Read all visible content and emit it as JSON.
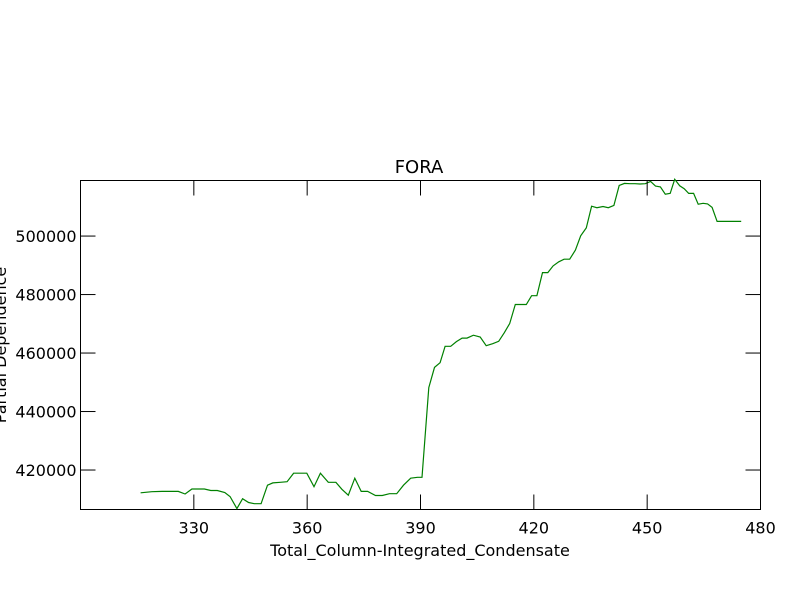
{
  "chart_data": {
    "type": "line",
    "title": "FORA",
    "xlabel": "Total_Column-Integrated_Condensate",
    "ylabel": "Partial Dependence",
    "xlim": [
      300,
      480
    ],
    "ylim": [
      406500,
      519000
    ],
    "xticks": [
      330,
      360,
      390,
      420,
      450,
      480
    ],
    "yticks": [
      420000,
      440000,
      460000,
      480000,
      500000
    ],
    "grid": false,
    "series": [
      {
        "color": "#008000",
        "x": [
          315.9,
          318.9,
          321.6,
          324.1,
          325.9,
          327.7,
          329.5,
          331.6,
          332.8,
          334.5,
          336.2,
          338.2,
          339.6,
          341.4,
          342.9,
          344.5,
          346.0,
          347.8,
          349.5,
          350.9,
          352.9,
          354.7,
          356.4,
          358.2,
          359.9,
          361.8,
          363.5,
          365.6,
          367.6,
          369.2,
          370.9,
          372.6,
          374.3,
          376.0,
          378.1,
          379.9,
          381.8,
          383.7,
          385.5,
          387.4,
          389.2,
          390.4,
          392.2,
          393.7,
          395.2,
          396.5,
          398.0,
          399.5,
          401.0,
          402.3,
          404.0,
          405.8,
          407.4,
          409.1,
          410.7,
          412.2,
          413.6,
          415.1,
          416.5,
          418.0,
          419.4,
          420.8,
          422.3,
          423.7,
          425.1,
          426.6,
          428.0,
          429.5,
          431.0,
          432.4,
          433.9,
          435.3,
          436.7,
          438.3,
          439.7,
          441.2,
          442.6,
          444.0,
          445.4,
          446.8,
          448.1,
          449.5,
          450.9,
          452.2,
          453.5,
          454.8,
          456.1,
          457.3,
          458.6,
          459.8,
          461.0,
          462.3,
          463.5,
          464.8,
          466.0,
          467.2,
          468.5,
          469.8,
          471.1,
          472.4,
          473.7,
          474.9
        ],
        "values": [
          412200,
          412600,
          412700,
          412700,
          412700,
          411800,
          413500,
          413500,
          413500,
          413000,
          413000,
          412300,
          410900,
          406800,
          410200,
          408900,
          408500,
          408500,
          414800,
          415600,
          415800,
          416000,
          418900,
          418900,
          418900,
          414300,
          418900,
          415800,
          415800,
          413400,
          411400,
          417200,
          412700,
          412700,
          411300,
          411300,
          411900,
          411900,
          414800,
          417200,
          417500,
          417500,
          448200,
          455100,
          456700,
          462300,
          462300,
          463900,
          465100,
          465100,
          466100,
          465500,
          462500,
          463200,
          464000,
          467000,
          470100,
          476600,
          476600,
          476600,
          479600,
          479600,
          487500,
          487500,
          489800,
          491200,
          492100,
          492100,
          495200,
          500100,
          502800,
          510200,
          509700,
          510100,
          509700,
          510500,
          517300,
          518000,
          517900,
          517900,
          517800,
          517900,
          518700,
          517100,
          516800,
          514300,
          514600,
          519400,
          517200,
          516200,
          514600,
          514600,
          510900,
          511200,
          511000,
          509800,
          505000,
          505000,
          505000,
          505000,
          505000,
          505000
        ]
      }
    ]
  }
}
